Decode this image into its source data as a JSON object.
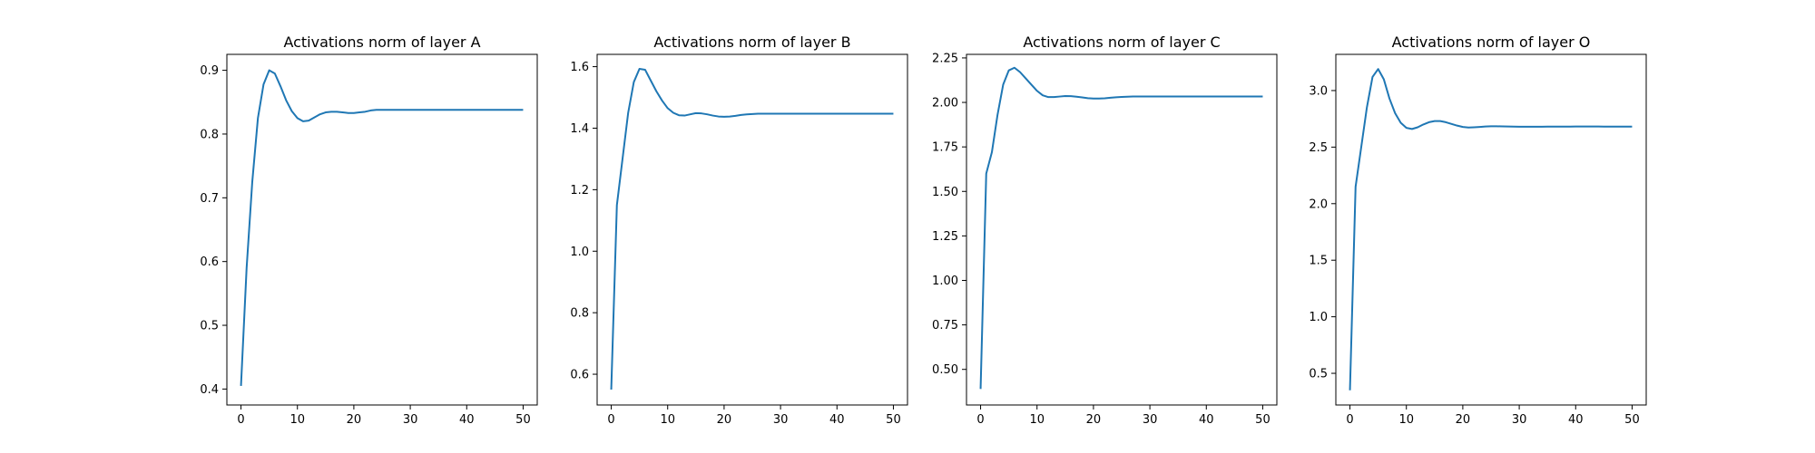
{
  "chart_data": [
    {
      "type": "line",
      "title": "Activations norm of layer A",
      "xlabel": "",
      "ylabel": "",
      "xlim": [
        -2.5,
        52.5
      ],
      "ylim": [
        0.375,
        0.925
      ],
      "xticks": [
        0,
        10,
        20,
        30,
        40,
        50
      ],
      "yticks": [
        0.4,
        0.5,
        0.6,
        0.7,
        0.8,
        0.9
      ],
      "ytick_decimals": 1,
      "grid": false,
      "color": "#1f77b4",
      "series": [
        {
          "x": [
            0,
            1,
            2,
            3,
            4,
            5,
            6,
            7,
            8,
            9,
            10,
            11,
            12,
            13,
            14,
            15,
            16,
            17,
            18,
            19,
            20,
            21,
            22,
            23,
            24,
            25,
            26,
            27,
            28,
            29,
            30,
            31,
            32,
            33,
            34,
            35,
            36,
            37,
            38,
            39,
            40,
            41,
            42,
            43,
            44,
            45,
            46,
            47,
            48,
            49,
            50
          ],
          "y": [
            0.405,
            0.59,
            0.725,
            0.825,
            0.878,
            0.9,
            0.895,
            0.875,
            0.853,
            0.836,
            0.825,
            0.82,
            0.821,
            0.826,
            0.831,
            0.834,
            0.835,
            0.835,
            0.834,
            0.833,
            0.833,
            0.834,
            0.835,
            0.837,
            0.838,
            0.838,
            0.838,
            0.838,
            0.838,
            0.838,
            0.838,
            0.838,
            0.838,
            0.838,
            0.838,
            0.838,
            0.838,
            0.838,
            0.838,
            0.838,
            0.838,
            0.838,
            0.838,
            0.838,
            0.838,
            0.838,
            0.838,
            0.838,
            0.838,
            0.838,
            0.838
          ]
        }
      ]
    },
    {
      "type": "line",
      "title": "Activations norm of layer B",
      "xlabel": "",
      "ylabel": "",
      "xlim": [
        -2.5,
        52.5
      ],
      "ylim": [
        0.5,
        1.64
      ],
      "xticks": [
        0,
        10,
        20,
        30,
        40,
        50
      ],
      "yticks": [
        0.6,
        0.8,
        1.0,
        1.2,
        1.4,
        1.6
      ],
      "ytick_decimals": 1,
      "grid": false,
      "color": "#1f77b4",
      "series": [
        {
          "x": [
            0,
            1,
            2,
            3,
            4,
            5,
            6,
            7,
            8,
            9,
            10,
            11,
            12,
            13,
            14,
            15,
            16,
            17,
            18,
            19,
            20,
            21,
            22,
            23,
            24,
            25,
            26,
            27,
            28,
            29,
            30,
            31,
            32,
            33,
            34,
            35,
            36,
            37,
            38,
            39,
            40,
            41,
            42,
            43,
            44,
            45,
            46,
            47,
            48,
            49,
            50
          ],
          "y": [
            0.55,
            1.15,
            1.3,
            1.45,
            1.55,
            1.593,
            1.59,
            1.555,
            1.52,
            1.49,
            1.465,
            1.45,
            1.442,
            1.441,
            1.445,
            1.449,
            1.448,
            1.445,
            1.441,
            1.438,
            1.437,
            1.438,
            1.44,
            1.443,
            1.445,
            1.446,
            1.447,
            1.447,
            1.447,
            1.447,
            1.447,
            1.447,
            1.447,
            1.447,
            1.447,
            1.447,
            1.447,
            1.447,
            1.447,
            1.447,
            1.447,
            1.447,
            1.447,
            1.447,
            1.447,
            1.447,
            1.447,
            1.447,
            1.447,
            1.447,
            1.447
          ]
        }
      ]
    },
    {
      "type": "line",
      "title": "Activations norm of layer C",
      "xlabel": "",
      "ylabel": "",
      "xlim": [
        -2.5,
        52.5
      ],
      "ylim": [
        0.3,
        2.27
      ],
      "xticks": [
        0,
        10,
        20,
        30,
        40,
        50
      ],
      "yticks": [
        0.5,
        0.75,
        1.0,
        1.25,
        1.5,
        1.75,
        2.0,
        2.25
      ],
      "ytick_decimals": 2,
      "grid": false,
      "color": "#1f77b4",
      "series": [
        {
          "x": [
            0,
            1,
            2,
            3,
            4,
            5,
            6,
            7,
            8,
            9,
            10,
            11,
            12,
            13,
            14,
            15,
            16,
            17,
            18,
            19,
            20,
            21,
            22,
            23,
            24,
            25,
            26,
            27,
            28,
            29,
            30,
            31,
            32,
            33,
            34,
            35,
            36,
            37,
            38,
            39,
            40,
            41,
            42,
            43,
            44,
            45,
            46,
            47,
            48,
            49,
            50
          ],
          "y": [
            0.39,
            1.6,
            1.72,
            1.93,
            2.1,
            2.18,
            2.195,
            2.17,
            2.135,
            2.1,
            2.065,
            2.04,
            2.03,
            2.03,
            2.033,
            2.036,
            2.035,
            2.032,
            2.028,
            2.024,
            2.022,
            2.022,
            2.023,
            2.026,
            2.029,
            2.031,
            2.032,
            2.033,
            2.033,
            2.033,
            2.033,
            2.033,
            2.033,
            2.033,
            2.033,
            2.033,
            2.033,
            2.033,
            2.033,
            2.033,
            2.033,
            2.033,
            2.033,
            2.033,
            2.033,
            2.033,
            2.033,
            2.033,
            2.033,
            2.033,
            2.033
          ]
        }
      ]
    },
    {
      "type": "line",
      "title": "Activations norm of layer O",
      "xlabel": "",
      "ylabel": "",
      "xlim": [
        -2.5,
        52.5
      ],
      "ylim": [
        0.22,
        3.32
      ],
      "xticks": [
        0,
        10,
        20,
        30,
        40,
        50
      ],
      "yticks": [
        0.5,
        1.0,
        1.5,
        2.0,
        2.5,
        3.0
      ],
      "ytick_decimals": 1,
      "grid": false,
      "color": "#1f77b4",
      "series": [
        {
          "x": [
            0,
            1,
            2,
            3,
            4,
            5,
            6,
            7,
            8,
            9,
            10,
            11,
            12,
            13,
            14,
            15,
            16,
            17,
            18,
            19,
            20,
            21,
            22,
            23,
            24,
            25,
            26,
            27,
            28,
            29,
            30,
            31,
            32,
            33,
            34,
            35,
            36,
            37,
            38,
            39,
            40,
            41,
            42,
            43,
            44,
            45,
            46,
            47,
            48,
            49,
            50
          ],
          "y": [
            0.35,
            2.15,
            2.5,
            2.85,
            3.12,
            3.19,
            3.1,
            2.93,
            2.8,
            2.715,
            2.67,
            2.66,
            2.675,
            2.7,
            2.72,
            2.73,
            2.73,
            2.72,
            2.705,
            2.69,
            2.678,
            2.673,
            2.675,
            2.678,
            2.682,
            2.684,
            2.684,
            2.683,
            2.682,
            2.681,
            2.68,
            2.68,
            2.68,
            2.68,
            2.68,
            2.681,
            2.681,
            2.681,
            2.681,
            2.681,
            2.682,
            2.682,
            2.682,
            2.682,
            2.682,
            2.681,
            2.681,
            2.681,
            2.681,
            2.681,
            2.681
          ]
        }
      ]
    }
  ]
}
